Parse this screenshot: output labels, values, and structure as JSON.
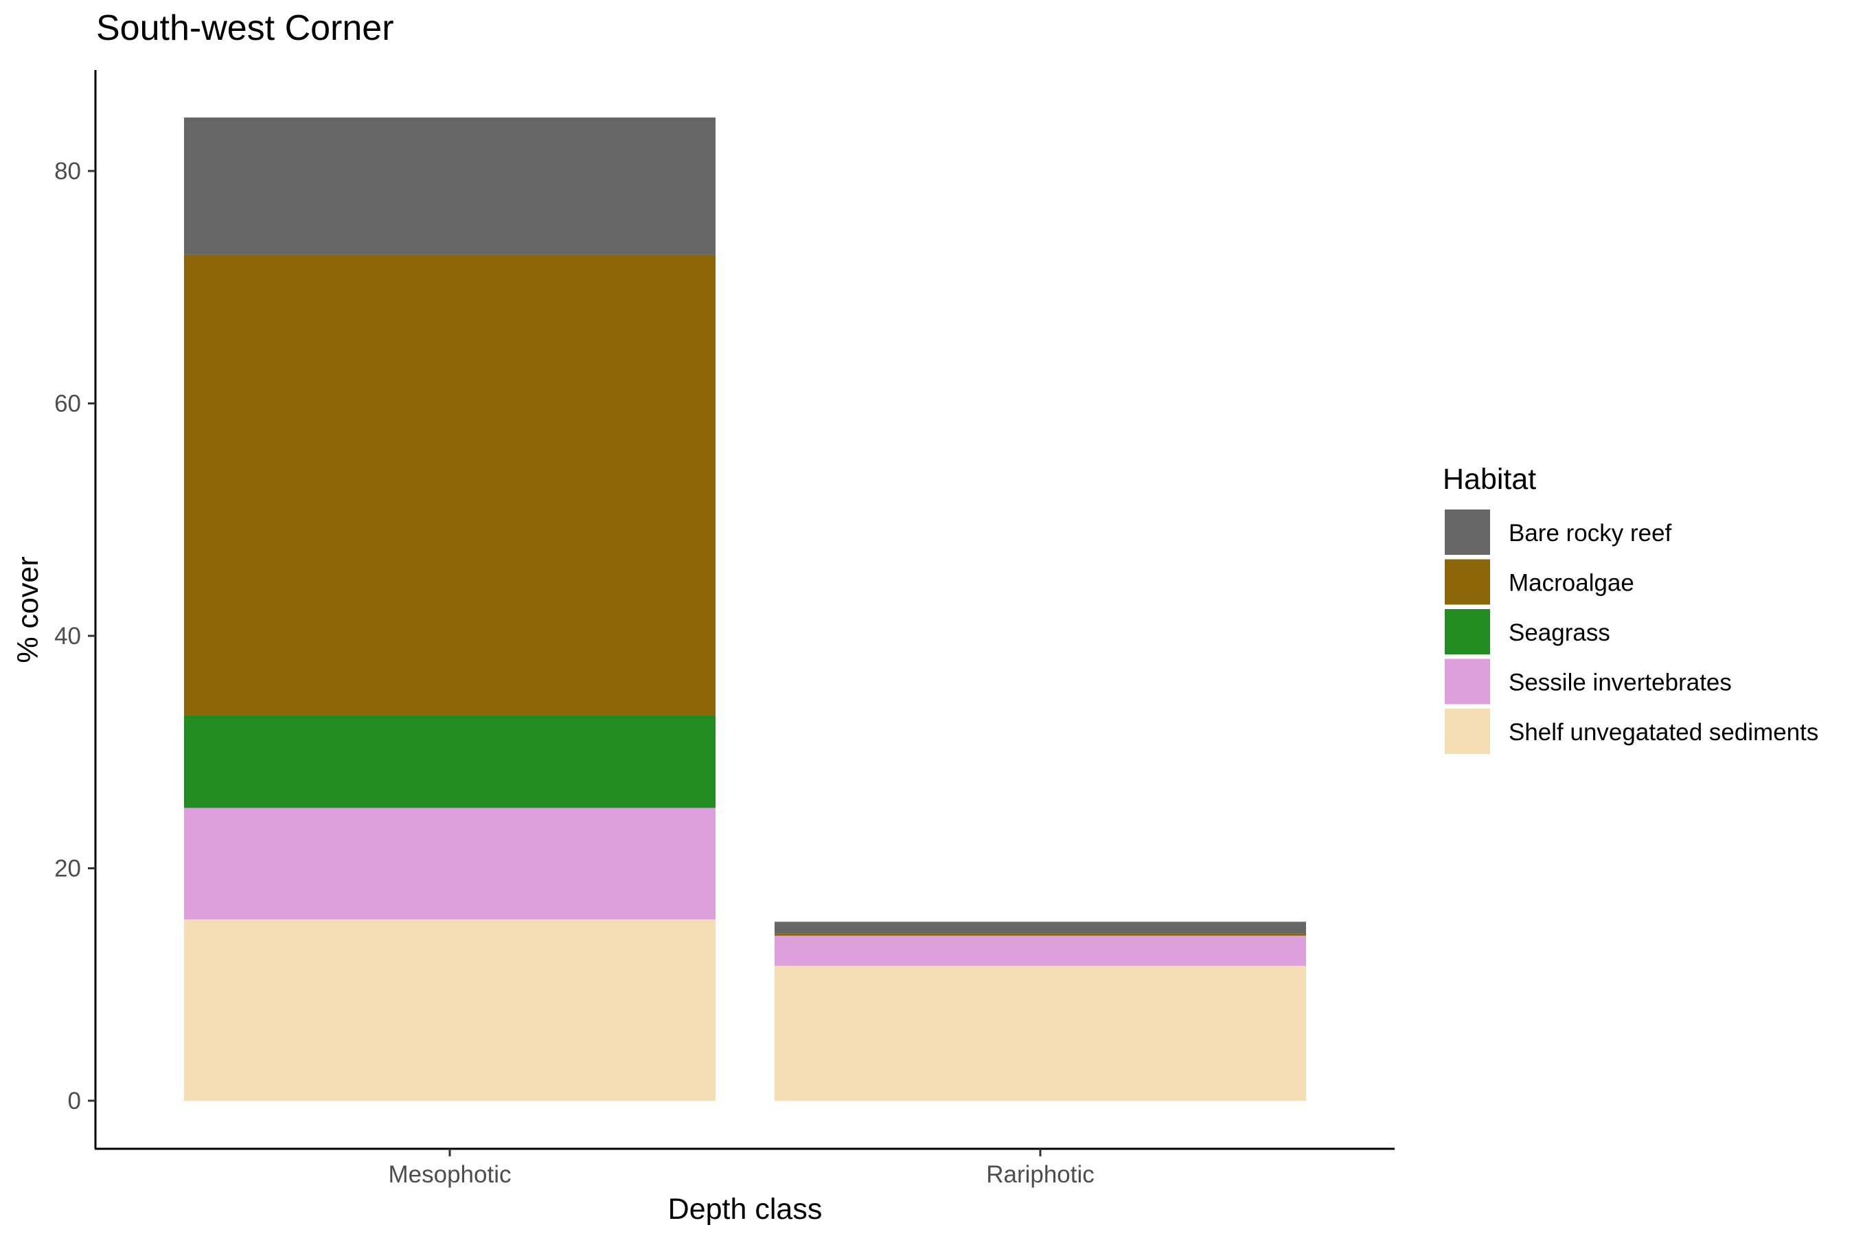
{
  "chart_data": {
    "type": "bar",
    "stacked": true,
    "title": "South-west Corner",
    "xlabel": "Depth class",
    "ylabel": "% cover",
    "categories": [
      "Mesophotic",
      "Rariphotic"
    ],
    "ylim": [
      -4,
      88
    ],
    "yticks": [
      0,
      20,
      40,
      60,
      80
    ],
    "grid": false,
    "legend": {
      "title": "Habitat",
      "position": "right"
    },
    "series": [
      {
        "name": "Shelf unvegatated sediments",
        "color": "#F5DEB3",
        "values": [
          15.6,
          11.6
        ]
      },
      {
        "name": "Sessile invertebrates",
        "color": "#DDA0DD",
        "values": [
          9.6,
          2.6
        ]
      },
      {
        "name": "Seagrass",
        "color": "#228B22",
        "values": [
          8.0,
          0.0
        ]
      },
      {
        "name": "Macroalgae",
        "color": "#8B6508",
        "values": [
          39.6,
          0.2
        ]
      },
      {
        "name": "Bare rocky reef",
        "color": "#666666",
        "values": [
          11.8,
          1.0
        ]
      }
    ],
    "legend_order": [
      "Bare rocky reef",
      "Macroalgae",
      "Seagrass",
      "Sessile invertebrates",
      "Shelf unvegatated sediments"
    ]
  }
}
